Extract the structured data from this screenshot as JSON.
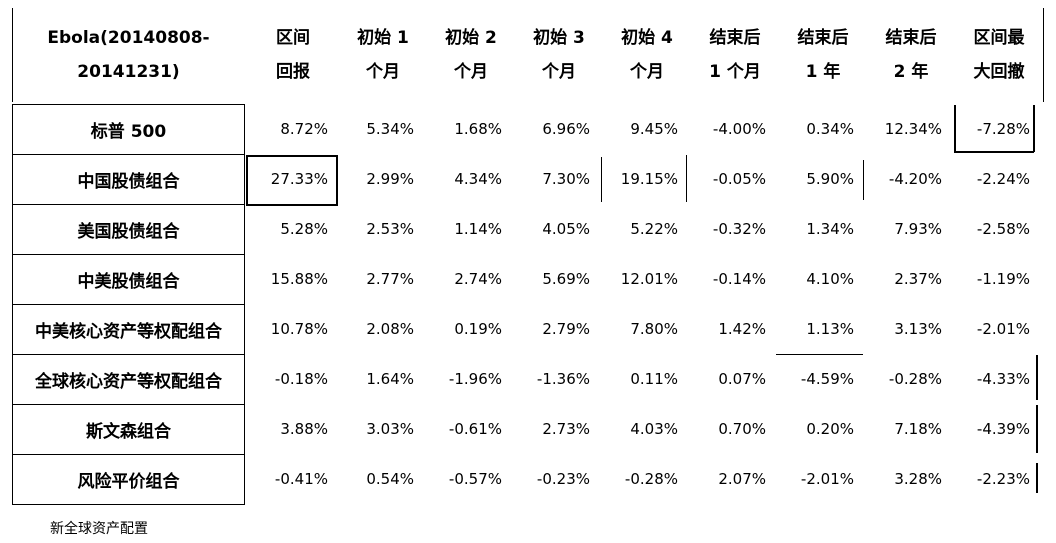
{
  "header": {
    "title_line1": "Ebola(20140808-",
    "title_line2": "20141231)",
    "columns": [
      [
        "区间",
        "回报"
      ],
      [
        "初始 1",
        "个月"
      ],
      [
        "初始 2",
        "个月"
      ],
      [
        "初始 3",
        "个月"
      ],
      [
        "初始 4",
        "个月"
      ],
      [
        "结束后",
        "1 个月"
      ],
      [
        "结束后",
        "1 年"
      ],
      [
        "结束后",
        "2 年"
      ],
      [
        "区间最",
        "大回撤"
      ]
    ]
  },
  "rows": [
    {
      "name": "标普 500",
      "values": [
        "8.72%",
        "5.34%",
        "1.68%",
        "6.96%",
        "9.45%",
        "-4.00%",
        "0.34%",
        "12.34%",
        "-7.28%"
      ]
    },
    {
      "name": "中国股债组合",
      "values": [
        "27.33%",
        "2.99%",
        "4.34%",
        "7.30%",
        "19.15%",
        "-0.05%",
        "5.90%",
        "-4.20%",
        "-2.24%"
      ]
    },
    {
      "name": "美国股债组合",
      "values": [
        "5.28%",
        "2.53%",
        "1.14%",
        "4.05%",
        "5.22%",
        "-0.32%",
        "1.34%",
        "7.93%",
        "-2.58%"
      ]
    },
    {
      "name": "中美股债组合",
      "values": [
        "15.88%",
        "2.77%",
        "2.74%",
        "5.69%",
        "12.01%",
        "-0.14%",
        "4.10%",
        "2.37%",
        "-1.19%"
      ]
    },
    {
      "name": "中美核心资产等权配组合",
      "values": [
        "10.78%",
        "2.08%",
        "0.19%",
        "2.79%",
        "7.80%",
        "1.42%",
        "1.13%",
        "3.13%",
        "-2.01%"
      ]
    },
    {
      "name": "全球核心资产等权配组合",
      "values": [
        "-0.18%",
        "1.64%",
        "-1.96%",
        "-1.36%",
        "0.11%",
        "0.07%",
        "-4.59%",
        "-0.28%",
        "-4.33%"
      ]
    },
    {
      "name": "斯文森组合",
      "values": [
        "3.88%",
        "3.03%",
        "-0.61%",
        "2.73%",
        "4.03%",
        "0.70%",
        "0.20%",
        "7.18%",
        "-4.39%"
      ]
    },
    {
      "name": "风险平价组合",
      "values": [
        "-0.41%",
        "0.54%",
        "-0.57%",
        "-0.23%",
        "-0.28%",
        "2.07%",
        "-2.01%",
        "3.28%",
        "-2.23%"
      ]
    }
  ],
  "source_note": "新全球资产配置"
}
